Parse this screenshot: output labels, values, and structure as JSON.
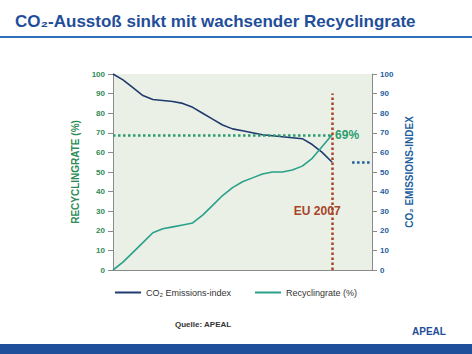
{
  "chart_data": {
    "type": "line",
    "title": "CO₂-Ausstoß sinkt mit wachsender Recyclingrate",
    "x": [
      0,
      1,
      2,
      3,
      4,
      5,
      6,
      7,
      8,
      9,
      10,
      11,
      12,
      13,
      14,
      15,
      16,
      17,
      18,
      19,
      20,
      21,
      22
    ],
    "xlim": [
      0,
      26
    ],
    "ylim": [
      0,
      100
    ],
    "yticks": [
      0,
      10,
      20,
      30,
      40,
      50,
      60,
      70,
      80,
      90,
      100
    ],
    "y2lim": [
      0,
      100
    ],
    "y2ticks": [
      0,
      10,
      20,
      30,
      40,
      50,
      60,
      70,
      80,
      90,
      100
    ],
    "ylabel": "RECYCLINGRATE (%)",
    "y2label": "CO₂ EMISSIONS-INDEX",
    "series": [
      {
        "name": "CO₂ Emissions-index",
        "color": "#1f3a6e",
        "axis": "y2",
        "values": [
          100,
          97,
          93,
          89,
          87,
          86.5,
          86,
          85,
          83,
          80,
          77,
          74,
          72,
          71,
          70,
          69,
          68.5,
          68,
          67.5,
          67,
          64,
          60,
          55
        ]
      },
      {
        "name": "Recyclingrate (%)",
        "color": "#2aa08a",
        "values": [
          0,
          4,
          9,
          14,
          19,
          21,
          22,
          23,
          24,
          28,
          33,
          38,
          42,
          45,
          47,
          49,
          50,
          50,
          51,
          53,
          57,
          63,
          69
        ]
      }
    ],
    "annotations": [
      {
        "text": "69%",
        "x": 23.5,
        "y": 69,
        "color": "#2a9d6e"
      },
      {
        "text": "EU 2007",
        "x": 20.5,
        "y": 30,
        "color": "#a8442a"
      }
    ],
    "reference_lines": [
      {
        "axis": "y",
        "value": 69,
        "from": 0,
        "to": 22,
        "color": "#2a9d6e",
        "line_style": "dotted"
      },
      {
        "axis": "x",
        "value": 22,
        "from": 0,
        "to": 90,
        "color": "#a8442a",
        "line_style": "dotted"
      },
      {
        "axis": "y2",
        "value": 55,
        "from": 24,
        "to": 26,
        "color": "#1f5fa0",
        "line_style": "dotted"
      }
    ],
    "source": "Quelle: APEAL",
    "logo": "APEAL",
    "legend": "bottom",
    "grid": false,
    "tick_labels": "y"
  }
}
